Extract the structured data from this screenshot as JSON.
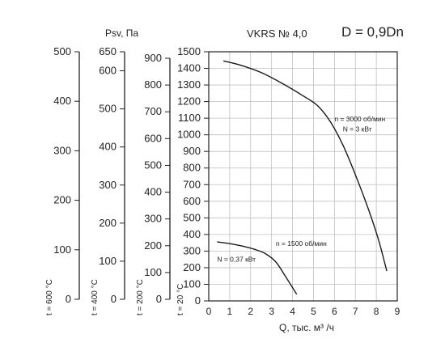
{
  "header": {
    "psv_label": "Psv, Па",
    "model": "VKRS № 4,0",
    "diameter": "D = 0,9Dn"
  },
  "chart_data": {
    "type": "line",
    "xlabel": "Q, тыс. м³ /ч",
    "ylabel": "Psv, Па",
    "xlim": [
      0,
      9
    ],
    "ylim": [
      0,
      1500
    ],
    "grid": true,
    "x_ticks": [
      "0",
      "1",
      "2",
      "3",
      "4",
      "5",
      "6",
      "7",
      "8",
      "9"
    ],
    "y_ticks": [
      "0",
      "100",
      "200",
      "300",
      "400",
      "500",
      "600",
      "700",
      "800",
      "900",
      "1000",
      "1100",
      "1200",
      "1300",
      "1400",
      "1500"
    ],
    "temp_axes": [
      {
        "label": "t = 20 °C",
        "max": 1500,
        "ticks": [
          "0",
          "100",
          "200",
          "300",
          "400",
          "500",
          "600",
          "700",
          "800",
          "900",
          "1000",
          "1100",
          "1200",
          "1300",
          "1400",
          "1500"
        ]
      },
      {
        "label": "t = 200 °C",
        "max": 900,
        "ticks": [
          "0",
          "100",
          "200",
          "300",
          "400",
          "500",
          "600",
          "700",
          "800",
          "900"
        ]
      },
      {
        "label": "t = 400 °C",
        "max": 650,
        "ticks": [
          "0",
          "100",
          "200",
          "300",
          "400",
          "500",
          "600",
          "650"
        ]
      },
      {
        "label": "t = 600 °C",
        "max": 500,
        "ticks": [
          "0",
          "100",
          "200",
          "300",
          "400",
          "500"
        ]
      }
    ],
    "series": [
      {
        "annotations": [
          "n = 3000 об/мин",
          "N = 3 кВт"
        ],
        "x": [
          0.7,
          1.5,
          2.5,
          3.5,
          4.5,
          5.2,
          5.8,
          6.4,
          7.0,
          7.6,
          8.1,
          8.5
        ],
        "y": [
          1445,
          1420,
          1375,
          1310,
          1235,
          1175,
          1080,
          940,
          760,
          560,
          370,
          180
        ]
      },
      {
        "annotations": [
          "n = 1500 об/мин",
          "N = 0,37 кВт"
        ],
        "x": [
          0.4,
          1.0,
          1.6,
          2.2,
          2.7,
          3.2,
          3.6,
          4.0,
          4.2
        ],
        "y": [
          355,
          345,
          330,
          310,
          285,
          235,
          160,
          80,
          40
        ]
      }
    ]
  }
}
